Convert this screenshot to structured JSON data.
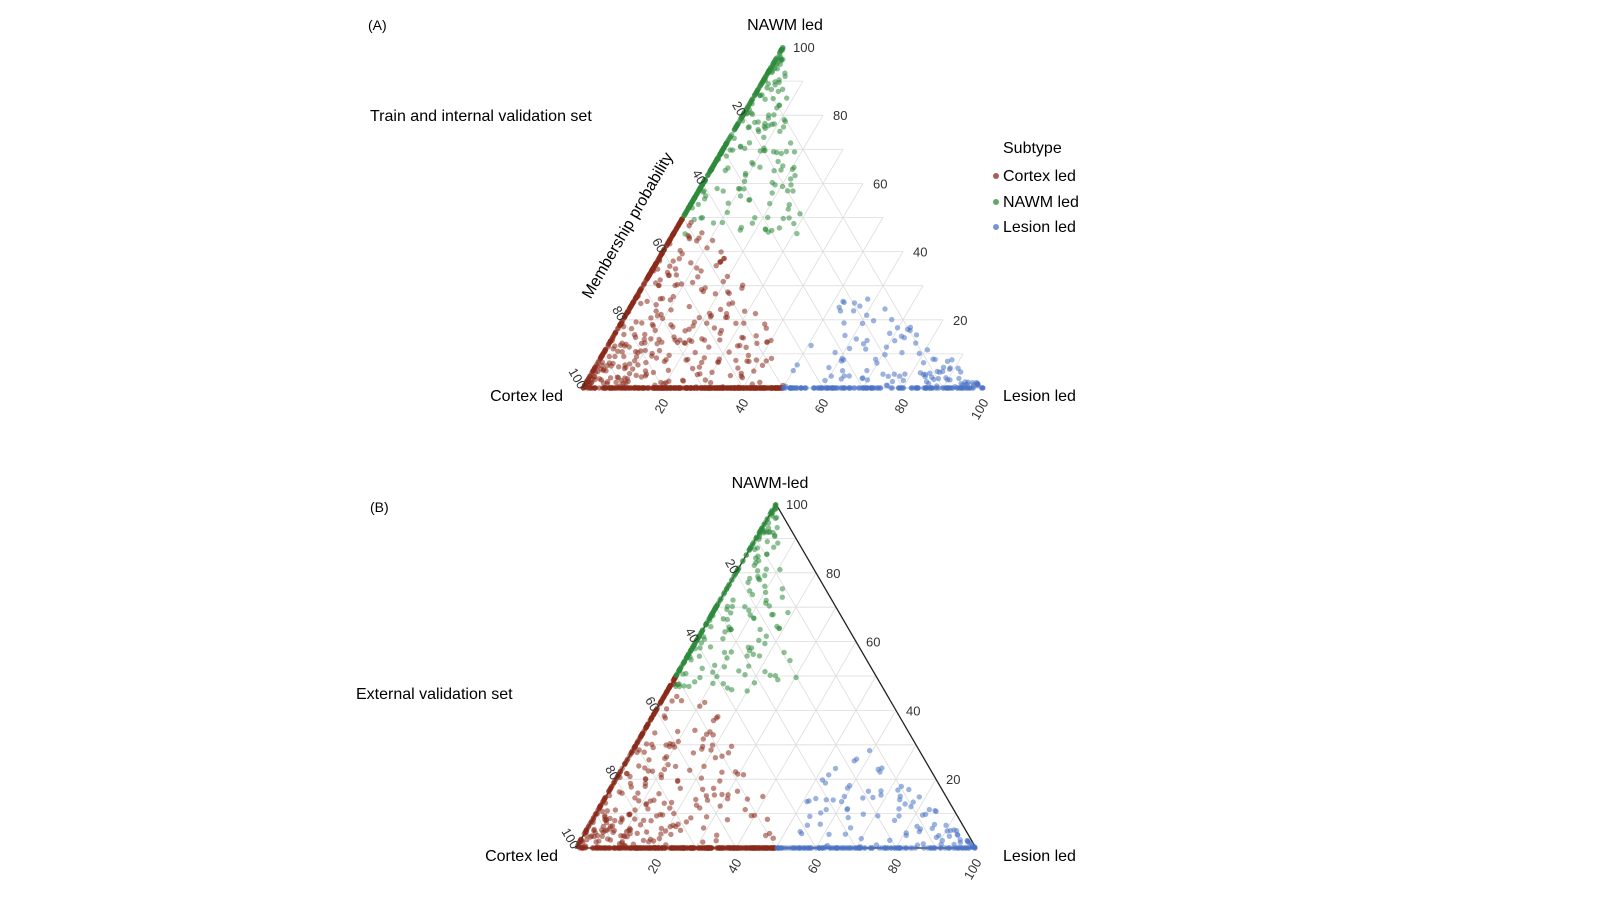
{
  "legend": {
    "title": "Subtype",
    "items": [
      {
        "label": "Cortex led",
        "color": "#8b2a1a"
      },
      {
        "label": "NAWM led",
        "color": "#2e8b3a"
      },
      {
        "label": "Lesion led",
        "color": "#4a72c4"
      }
    ]
  },
  "chart_data": [
    {
      "type": "scatter",
      "subtype": "ternary",
      "panel_label": "(A)",
      "annotation": "Train and internal validation set",
      "axis_title": "Membership probability",
      "vertices": {
        "top": "NAWM led",
        "left": "Cortex led",
        "right": "Lesion led"
      },
      "ticks": [
        "20",
        "40",
        "60",
        "80",
        "100"
      ],
      "scale": [
        0,
        100
      ],
      "grid": true,
      "outline": false,
      "legend_position": "right",
      "series": [
        {
          "name": "Cortex led",
          "color": "#8b2a1a",
          "count": 900
        },
        {
          "name": "NAWM led",
          "color": "#2e8b3a",
          "count": 420
        },
        {
          "name": "Lesion led",
          "color": "#4a72c4",
          "count": 260
        }
      ]
    },
    {
      "type": "scatter",
      "subtype": "ternary",
      "panel_label": "(B)",
      "annotation": "External validation set",
      "vertices": {
        "top": "NAWM-led",
        "left": "Cortex led",
        "right": "Lesion led"
      },
      "ticks": [
        "20",
        "40",
        "60",
        "80",
        "100"
      ],
      "scale": [
        0,
        100
      ],
      "grid": true,
      "outline": true,
      "series": [
        {
          "name": "Cortex led",
          "color": "#8b2a1a",
          "count": 700
        },
        {
          "name": "NAWM led",
          "color": "#2e8b3a",
          "count": 300
        },
        {
          "name": "Lesion led",
          "color": "#4a72c4",
          "count": 220
        }
      ]
    }
  ]
}
